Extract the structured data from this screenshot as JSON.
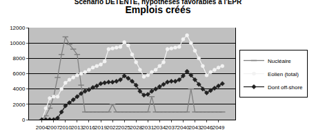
{
  "chart_data": {
    "type": "line",
    "title": "Emplois créés",
    "subtitle": "Scénario DETENTE, hypothèses favorables à l'EPR",
    "categories": [
      "2004",
      null,
      null,
      "2007",
      null,
      null,
      "2010",
      null,
      null,
      "2013",
      null,
      null,
      "2016",
      null,
      null,
      "2019",
      null,
      null,
      "2022",
      null,
      null,
      "2025",
      null,
      null,
      "2028",
      null,
      null,
      "2031",
      null,
      null,
      "2034",
      null,
      null,
      "2037",
      null,
      null,
      "2040",
      null,
      null,
      "2043",
      null,
      null,
      "2046",
      null,
      null,
      "2049",
      null
    ],
    "series": [
      {
        "name": "Nucléaire",
        "color": "#808080",
        "marker": "dash",
        "values": [
          0,
          500,
          1500,
          3000,
          5500,
          8500,
          10800,
          9800,
          9200,
          8500,
          4500,
          1000,
          1000,
          1000,
          1000,
          1000,
          1000,
          1000,
          2000,
          1000,
          1000,
          1000,
          1000,
          1000,
          1000,
          1000,
          1000,
          1000,
          3000,
          1000,
          1000,
          1000,
          1000,
          1000,
          1000,
          1000,
          1000,
          1000,
          4000,
          1000,
          1000,
          1000,
          1000,
          1000,
          1000,
          1000,
          1000
        ]
      },
      {
        "name": "Eolien (total)",
        "color": "#f2f2f2",
        "marker": "circle",
        "values": [
          0,
          1500,
          2800,
          3000,
          3000,
          4000,
          4800,
          5200,
          5500,
          5800,
          6000,
          6200,
          6500,
          6800,
          7000,
          7200,
          7600,
          9200,
          9300,
          9400,
          9500,
          10100,
          9700,
          8500,
          7500,
          6500,
          5600,
          5800,
          6200,
          6500,
          7000,
          7500,
          9200,
          9300,
          9400,
          9500,
          10500,
          11000,
          10000,
          9000,
          8000,
          7000,
          5800,
          6200,
          6500,
          6800,
          7000
        ]
      },
      {
        "name": "Dont off-shore",
        "color": "#222222",
        "marker": "diamond",
        "values": [
          0,
          0,
          0,
          0,
          200,
          1000,
          1800,
          2200,
          2600,
          3000,
          3400,
          3700,
          3900,
          4200,
          4400,
          4700,
          4800,
          4900,
          4900,
          5000,
          5200,
          5700,
          5400,
          5000,
          4500,
          3700,
          3200,
          3300,
          3700,
          4000,
          4300,
          4600,
          4900,
          5000,
          5000,
          5200,
          5700,
          6300,
          5800,
          5200,
          4600,
          4000,
          3500,
          3800,
          4100,
          4400,
          4700
        ]
      }
    ],
    "ylim": [
      0,
      12000
    ],
    "yticks": [
      0,
      2000,
      4000,
      6000,
      8000,
      10000,
      12000
    ],
    "grid": true,
    "legend": "right"
  }
}
